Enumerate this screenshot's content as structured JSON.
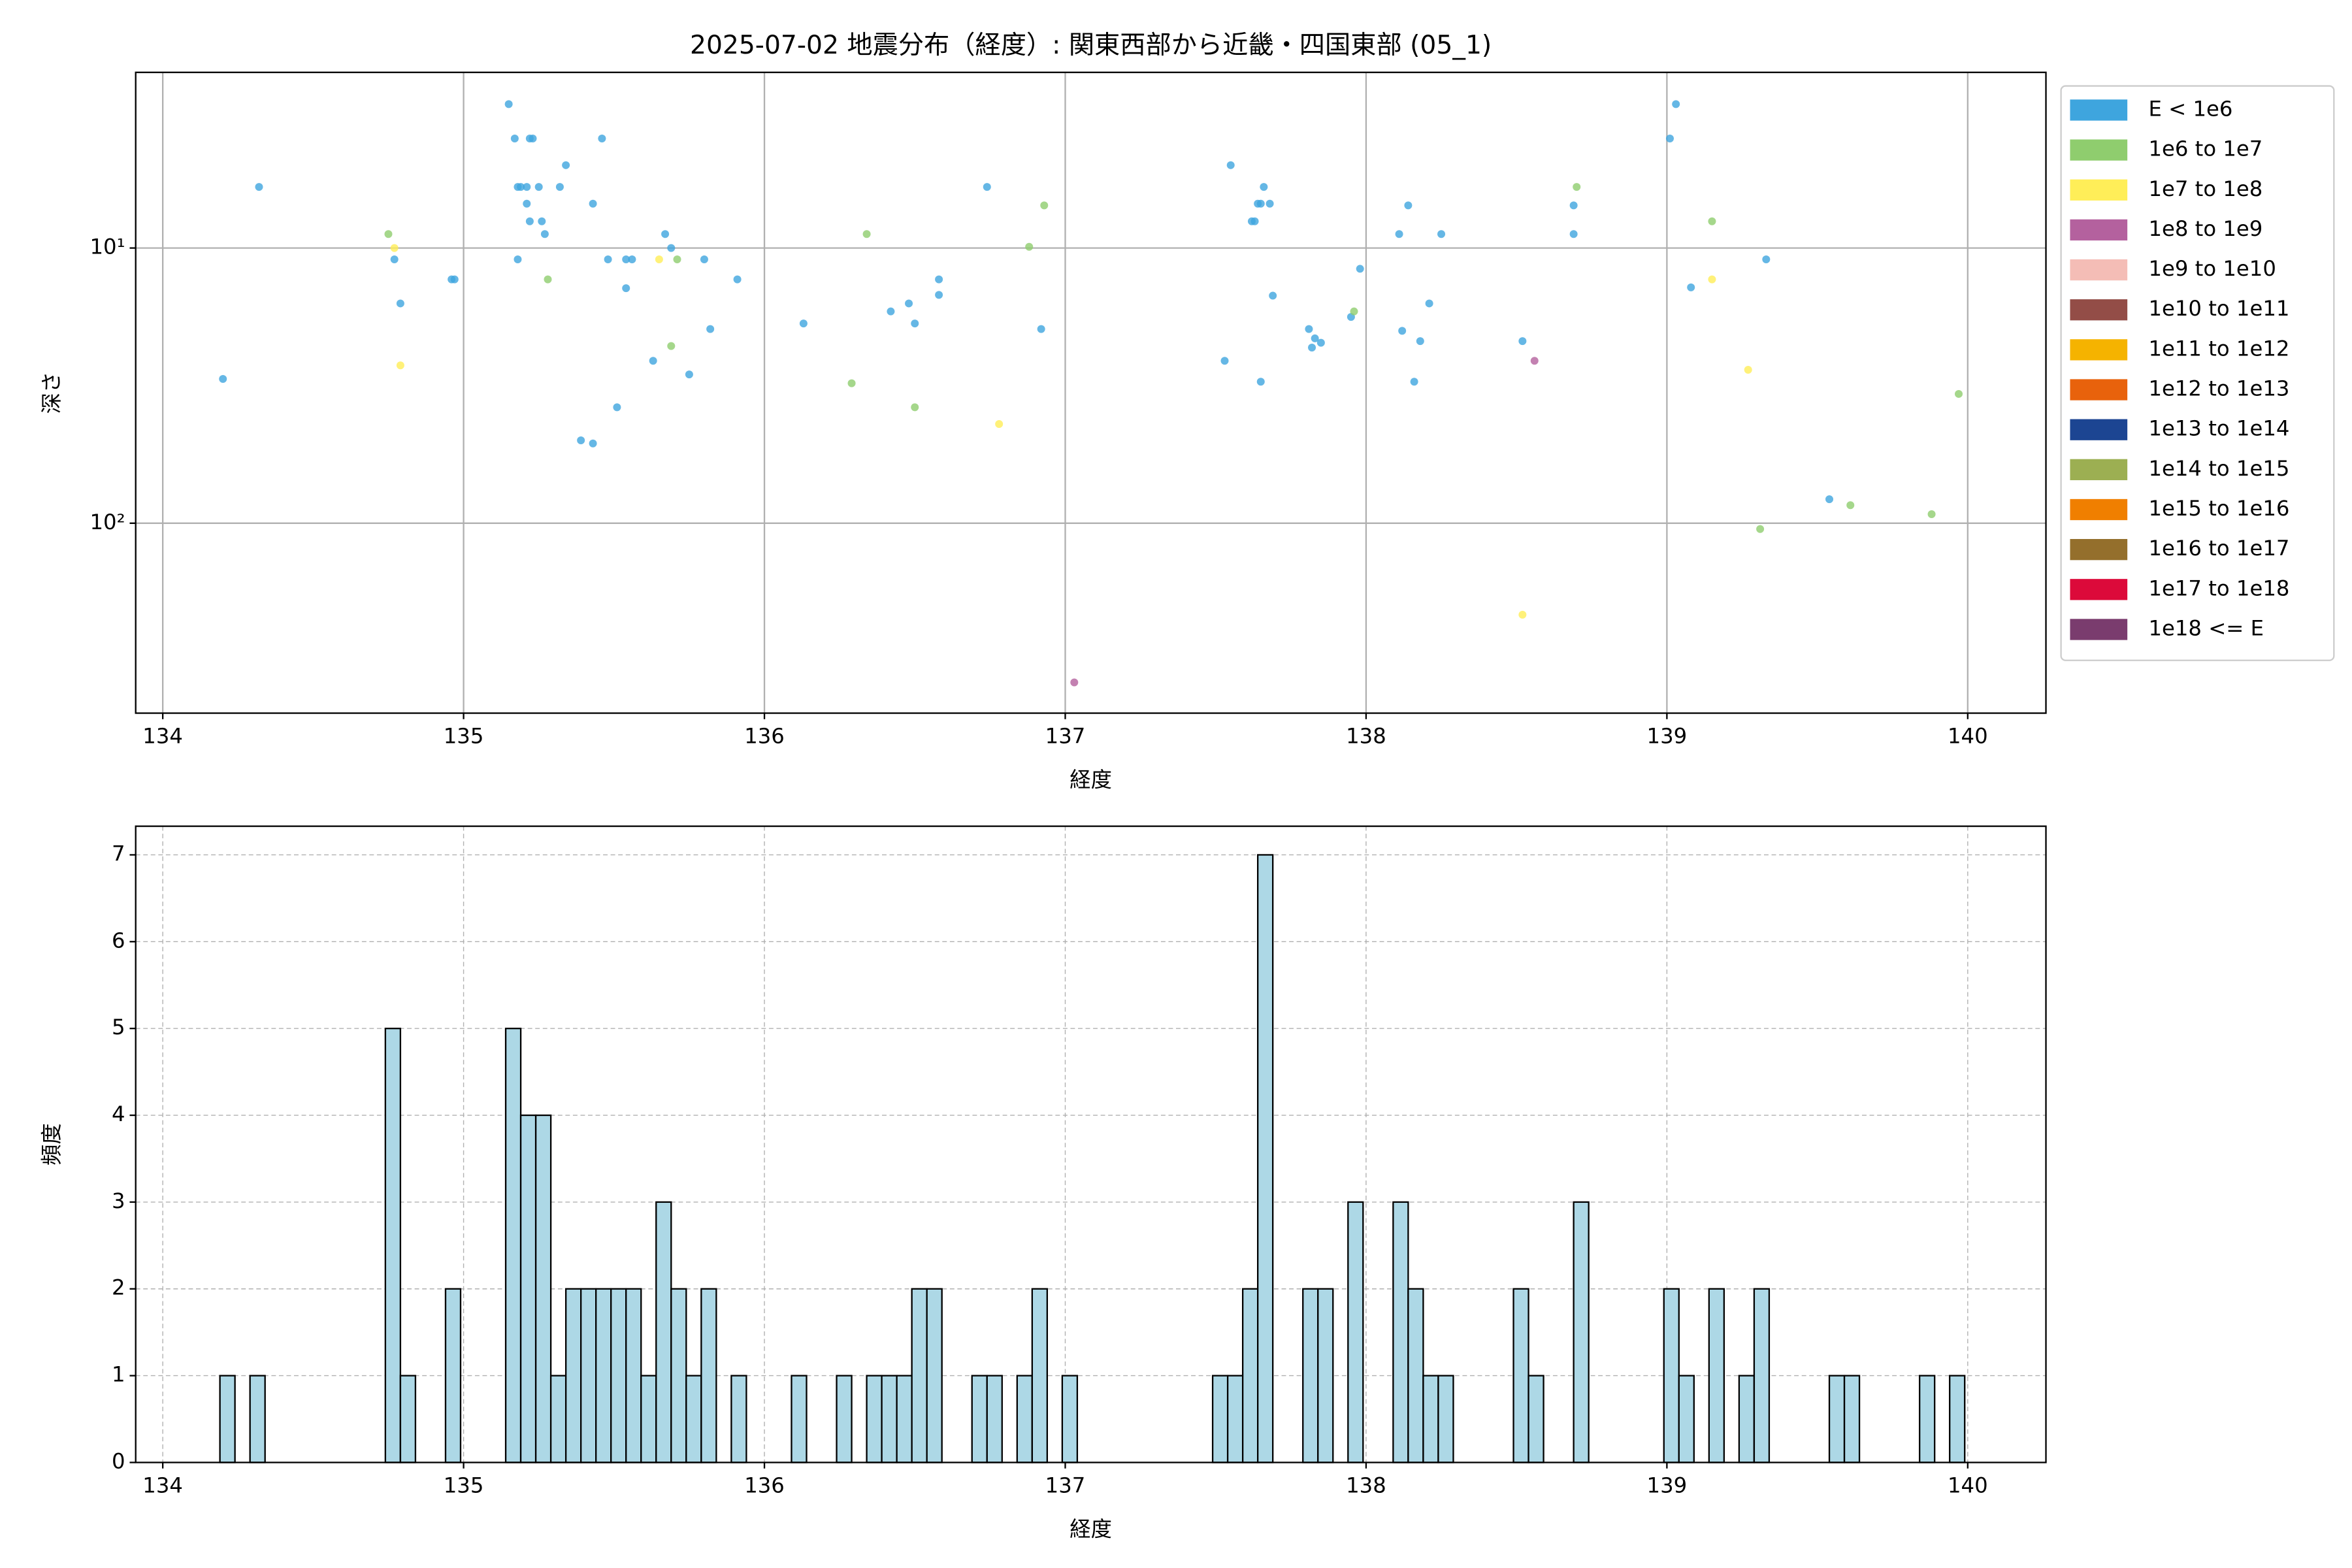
{
  "chart_data": [
    {
      "type": "scatter",
      "title": "2025-07-02 地震分布（経度）: 関東西部から近畿・四国東部 (05_1)",
      "x_label": "経度",
      "y_label": "深さ",
      "xlim": [
        133.91,
        140.26
      ],
      "xticks": [
        134,
        135,
        136,
        137,
        138,
        139,
        140
      ],
      "ylim": [
        490,
        2.3
      ],
      "log_y": true,
      "yticks": [
        {
          "value": 10,
          "label": "10¹"
        },
        {
          "value": 100,
          "label": "10²"
        }
      ],
      "grid": true,
      "grid_linestyle": "solid",
      "legend": "outside upper right",
      "series": [
        {
          "name": "E < 1e6",
          "color": "#3ea5de",
          "x": [
            134.2,
            134.32,
            134.77,
            134.79,
            134.96,
            134.97,
            135.15,
            135.17,
            135.18,
            135.19,
            135.21,
            135.21,
            135.22,
            135.22,
            135.23,
            135.25,
            135.26,
            135.27,
            135.18,
            135.32,
            135.34,
            135.39,
            135.43,
            135.43,
            135.46,
            135.48,
            135.51,
            135.54,
            135.54,
            135.56,
            135.63,
            135.67,
            135.69,
            135.75,
            135.8,
            135.82,
            135.91,
            136.13,
            136.42,
            136.48,
            136.5,
            136.58,
            136.58,
            136.74,
            136.92,
            137.53,
            137.55,
            137.62,
            137.63,
            137.65,
            137.64,
            137.65,
            137.66,
            137.68,
            137.69,
            137.81,
            137.82,
            137.83,
            137.85,
            137.95,
            137.98,
            138.11,
            138.12,
            138.14,
            138.16,
            138.18,
            138.21,
            138.25,
            138.52,
            138.69,
            138.69,
            139.01,
            139.03,
            139.08,
            139.33,
            139.54
          ],
          "y": [
            29.9,
            6.0,
            11,
            15.9,
            13,
            13,
            3.0,
            4.0,
            6.0,
            6.0,
            6.0,
            6.9,
            8.0,
            4.0,
            4.0,
            6.0,
            8.0,
            8.9,
            11,
            6.0,
            5.0,
            50,
            51.3,
            6.9,
            4.0,
            11,
            37.9,
            11,
            14,
            11,
            25.7,
            8.9,
            10,
            28.8,
            11,
            19.7,
            13,
            18.8,
            17.0,
            15.9,
            18.8,
            13,
            14.8,
            6.0,
            19.7,
            25.7,
            5.0,
            8.0,
            8.0,
            30.6,
            6.9,
            6.9,
            6.0,
            6.9,
            14.9,
            19.7,
            23.0,
            21.3,
            22.1,
            17.8,
            11.9,
            8.9,
            20.0,
            7.0,
            30.6,
            21.8,
            15.9,
            8.9,
            21.8,
            8.9,
            7.0,
            4.0,
            3.0,
            13.9,
            11,
            81.8
          ]
        },
        {
          "name": "1e6 to 1e7",
          "color": "#8fcd6e",
          "x": [
            134.75,
            135.28,
            135.71,
            135.69,
            136.29,
            136.34,
            136.5,
            136.88,
            136.93,
            137.96,
            138.7,
            139.15,
            139.31,
            139.61,
            139.88,
            139.97
          ],
          "y": [
            8.9,
            13,
            11,
            22.7,
            31.0,
            8.9,
            37.9,
            9.9,
            7.0,
            17.0,
            6.0,
            8.0,
            105,
            86,
            92.7,
            33.9
          ]
        },
        {
          "name": "1e7 to 1e8",
          "color": "#ffee58",
          "x": [
            134.77,
            134.79,
            135.65,
            136.78,
            138.52,
            139.15,
            139.27
          ],
          "y": [
            10,
            26.7,
            11,
            43.6,
            215,
            13,
            27.7
          ]
        },
        {
          "name": "1e8 to 1e9",
          "color": "#b4619e",
          "x": [
            138.56,
            137.03
          ],
          "y": [
            25.7,
            379
          ]
        },
        {
          "name": "1e9 to 1e10",
          "color": "#f4bdb6",
          "x": [],
          "y": []
        },
        {
          "name": "1e10 to 1e11",
          "color": "#934d47",
          "x": [],
          "y": []
        },
        {
          "name": "1e11 to 1e12",
          "color": "#f5b300",
          "x": [],
          "y": []
        },
        {
          "name": "1e12 to 1e13",
          "color": "#e8620c",
          "x": [],
          "y": []
        },
        {
          "name": "1e13 to 1e14",
          "color": "#1c4592",
          "x": [],
          "y": []
        },
        {
          "name": "1e14 to 1e15",
          "color": "#9caf52",
          "x": [],
          "y": []
        },
        {
          "name": "1e15 to 1e16",
          "color": "#f07f00",
          "x": [],
          "y": []
        },
        {
          "name": "1e16 to 1e17",
          "color": "#946f2c",
          "x": [],
          "y": []
        },
        {
          "name": "1e17 to 1e18",
          "color": "#dc0a3a",
          "x": [],
          "y": []
        },
        {
          "name": "1e18 <= E",
          "color": "#7a3c6e",
          "x": [],
          "y": []
        }
      ]
    },
    {
      "type": "histogram",
      "x_label": "経度",
      "y_label": "頻度",
      "xlim": [
        133.91,
        140.26
      ],
      "xticks": [
        134,
        135,
        136,
        137,
        138,
        139,
        140
      ],
      "ylim": [
        0,
        7.33
      ],
      "yticks": [
        0,
        1,
        2,
        3,
        4,
        5,
        6,
        7
      ],
      "grid": true,
      "grid_linestyle": "dashed",
      "color": "#add8e6",
      "edgecolor": "#000000",
      "bins": [
        134.19,
        134.24,
        134.29,
        134.34,
        134.39,
        134.44,
        134.49,
        134.54,
        134.59,
        134.64,
        134.69,
        134.74,
        134.79,
        134.84,
        134.89,
        134.94,
        134.99,
        135.04,
        135.09,
        135.14,
        135.19,
        135.24,
        135.29,
        135.34,
        135.39,
        135.44,
        135.49,
        135.54,
        135.59,
        135.64,
        135.69,
        135.74,
        135.79,
        135.84,
        135.89,
        135.94,
        135.99,
        136.04,
        136.09,
        136.14,
        136.19,
        136.24,
        136.29,
        136.34,
        136.39,
        136.44,
        136.49,
        136.54,
        136.59,
        136.64,
        136.69,
        136.74,
        136.79,
        136.84,
        136.89,
        136.94,
        136.99,
        137.04,
        137.09,
        137.14,
        137.19,
        137.24,
        137.29,
        137.34,
        137.39,
        137.44,
        137.49,
        137.54,
        137.59,
        137.64,
        137.69,
        137.74,
        137.79,
        137.84,
        137.89,
        137.94,
        137.99,
        138.04,
        138.09,
        138.14,
        138.19,
        138.24,
        138.29,
        138.34,
        138.39,
        138.44,
        138.49,
        138.54,
        138.59,
        138.64,
        138.69,
        138.74,
        138.79,
        138.84,
        138.89,
        138.94,
        138.99,
        139.04,
        139.09,
        139.14,
        139.19,
        139.24,
        139.29,
        139.34,
        139.39,
        139.44,
        139.49,
        139.54,
        139.59,
        139.64,
        139.69,
        139.74,
        139.79,
        139.84,
        139.89,
        139.94,
        139.99
      ],
      "counts": [
        1,
        0,
        1,
        0,
        0,
        0,
        0,
        0,
        0,
        0,
        0,
        5,
        1,
        0,
        0,
        2,
        0,
        0,
        0,
        5,
        4,
        4,
        1,
        2,
        2,
        2,
        2,
        2,
        1,
        3,
        2,
        1,
        2,
        0,
        1,
        0,
        0,
        0,
        1,
        0,
        0,
        1,
        0,
        1,
        1,
        1,
        2,
        2,
        0,
        0,
        1,
        1,
        0,
        1,
        2,
        0,
        1,
        0,
        0,
        0,
        0,
        0,
        0,
        0,
        0,
        0,
        1,
        1,
        2,
        7,
        0,
        0,
        2,
        2,
        0,
        3,
        0,
        0,
        3,
        2,
        1,
        1,
        0,
        0,
        0,
        0,
        2,
        1,
        0,
        0,
        3,
        0,
        0,
        0,
        0,
        0,
        2,
        1,
        0,
        2,
        0,
        1,
        2,
        0,
        0,
        0,
        0,
        1,
        1,
        0,
        0,
        0,
        0,
        1,
        0,
        1
      ]
    }
  ]
}
